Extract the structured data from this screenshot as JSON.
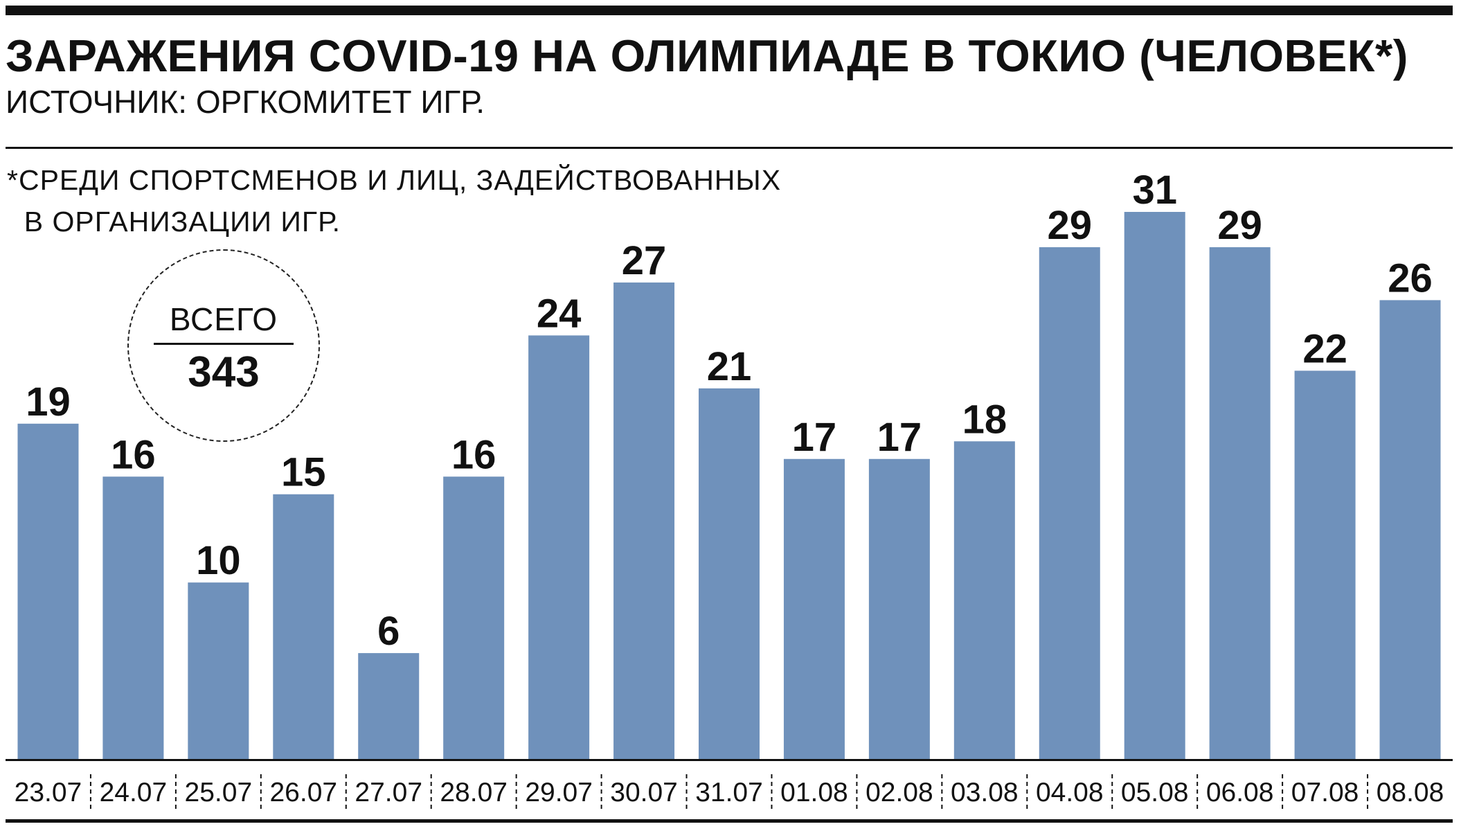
{
  "header": {
    "title": "ЗАРАЖЕНИЯ COVID-19 НА ОЛИМПИАДЕ В ТОКИО (ЧЕЛОВЕК*)",
    "source": "ИСТОЧНИК: ОРГКОМИТЕТ ИГР.",
    "footnote": "*СРЕДИ СПОРТСМЕНОВ И ЛИЦ, ЗАДЕЙСТВОВАННЫХ\n  В ОРГАНИЗАЦИИ ИГР."
  },
  "total": {
    "label": "ВСЕГО",
    "value": "343"
  },
  "colors": {
    "bar": "#6f91bb",
    "text": "#111111"
  },
  "chart_data": {
    "type": "bar",
    "categories": [
      "23.07",
      "24.07",
      "25.07",
      "26.07",
      "27.07",
      "28.07",
      "29.07",
      "30.07",
      "31.07",
      "01.08",
      "02.08",
      "03.08",
      "04.08",
      "05.08",
      "06.08",
      "07.08",
      "08.08"
    ],
    "values": [
      19,
      16,
      10,
      15,
      6,
      16,
      24,
      27,
      21,
      17,
      17,
      18,
      29,
      31,
      29,
      22,
      26
    ],
    "title": "ЗАРАЖЕНИЯ COVID-19 НА ОЛИМПИАДЕ В ТОКИО (ЧЕЛОВЕК*)",
    "xlabel": "",
    "ylabel": "",
    "ylim": [
      0,
      31
    ],
    "grid": false,
    "data_labels": true
  }
}
